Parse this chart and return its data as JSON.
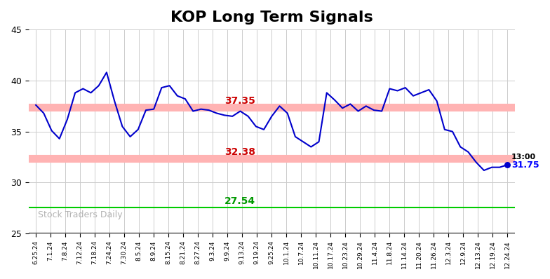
{
  "title": "KOP Long Term Signals",
  "title_fontsize": 16,
  "title_fontweight": "bold",
  "background_color": "#ffffff",
  "line_color": "#0000cc",
  "line_width": 1.5,
  "ylim": [
    25,
    45
  ],
  "yticks": [
    25,
    30,
    35,
    40,
    45
  ],
  "hline_upper": 37.35,
  "hline_lower": 32.38,
  "hline_green": 27.54,
  "hline_upper_color": "#ffb3b3",
  "hline_lower_color": "#ffb3b3",
  "hline_green_color": "#00cc00",
  "label_upper": "37.35",
  "label_lower": "32.38",
  "label_green": "27.54",
  "label_color_upper": "#cc0000",
  "label_color_lower": "#cc0000",
  "label_color_green": "#009900",
  "last_price": 31.75,
  "last_time": "13:00",
  "last_price_color": "#0000ff",
  "last_time_color": "#000000",
  "watermark": "Stock Traders Daily",
  "watermark_color": "#aaaaaa",
  "grid_color": "#cccccc",
  "xtick_labels": [
    "6.25.24",
    "7.1.24",
    "7.8.24",
    "7.12.24",
    "7.18.24",
    "7.24.24",
    "7.30.24",
    "8.5.24",
    "8.9.24",
    "8.15.24",
    "8.21.24",
    "8.27.24",
    "9.3.24",
    "9.9.24",
    "9.13.24",
    "9.19.24",
    "9.25.24",
    "10.1.24",
    "10.7.24",
    "10.11.24",
    "10.17.24",
    "10.23.24",
    "10.29.24",
    "11.4.24",
    "11.8.24",
    "11.14.24",
    "11.20.24",
    "11.26.24",
    "12.3.24",
    "12.9.24",
    "12.13.24",
    "12.19.24",
    "12.24.24"
  ],
  "prices": [
    37.6,
    36.8,
    35.1,
    34.3,
    36.2,
    38.8,
    39.2,
    38.8,
    39.5,
    40.8,
    38.0,
    35.5,
    34.5,
    35.2,
    37.1,
    37.2,
    39.3,
    39.5,
    38.5,
    38.2,
    37.0,
    37.2,
    37.1,
    36.8,
    36.6,
    36.5,
    37.0,
    36.5,
    35.5,
    35.2,
    36.5,
    37.5,
    36.8,
    34.5,
    34.0,
    33.5,
    34.0,
    38.8,
    38.1,
    37.3,
    37.7,
    37.0,
    37.5,
    37.1,
    37.0,
    39.2,
    39.0,
    39.3,
    38.5,
    38.8,
    39.1,
    38.0,
    35.2,
    35.0,
    33.5,
    33.0,
    32.0,
    31.2,
    31.5,
    31.5,
    31.75
  ]
}
